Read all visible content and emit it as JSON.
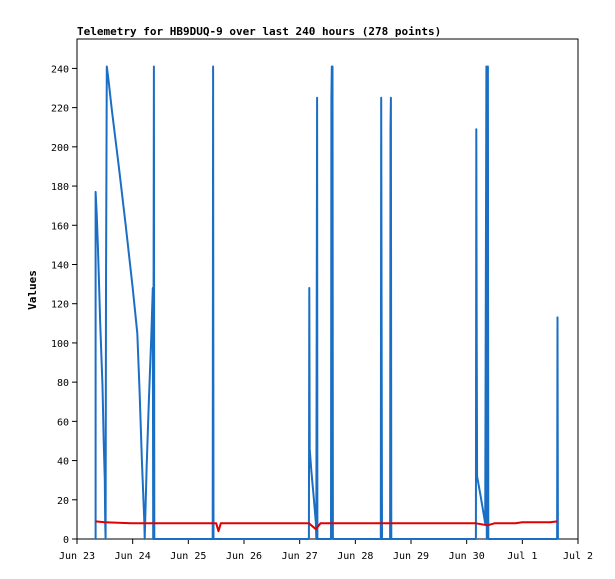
{
  "chart_data": {
    "type": "line",
    "title": "Telemetry for HB9DUQ-9 over last 240 hours (278 points)",
    "xlabel": "",
    "ylabel": "Values",
    "x_ticks": [
      "Jun 23",
      "Jun 24",
      "Jun 25",
      "Jun 26",
      "Jun 27",
      "Jun 28",
      "Jun 29",
      "Jun 30",
      "Jul 1",
      "Jul 2"
    ],
    "xlim": [
      "Jun 23",
      "Jul 2"
    ],
    "ylim": [
      0,
      255
    ],
    "y_ticks": [
      0,
      20,
      40,
      60,
      80,
      100,
      120,
      140,
      160,
      180,
      200,
      220,
      240
    ],
    "grid": false,
    "legend": "none",
    "colors": {
      "blue": "#1a6fc4",
      "red": "#e00000",
      "axis": "#000000"
    },
    "series": [
      {
        "color": "#1a6fc4",
        "points": [
          [
            "Jun 23 08:00",
            0
          ],
          [
            "Jun 23 08:00",
            177
          ],
          [
            "Jun 23 08:30",
            166
          ],
          [
            "Jun 23 09:00",
            149
          ],
          [
            "Jun 23 09:30",
            131
          ],
          [
            "Jun 23 10:00",
            110
          ],
          [
            "Jun 23 11:00",
            78
          ],
          [
            "Jun 23 11:30",
            50
          ],
          [
            "Jun 23 12:00",
            30
          ],
          [
            "Jun 23 12:10",
            8
          ],
          [
            "Jun 23 12:20",
            0
          ],
          [
            "Jun 23 12:30",
            128
          ],
          [
            "Jun 23 12:50",
            241
          ],
          [
            "Jun 23 13:30",
            235
          ],
          [
            "Jun 23 15:00",
            219
          ],
          [
            "Jun 23 18:00",
            190
          ],
          [
            "Jun 23 21:00",
            160
          ],
          [
            "Jun 24 00:00",
            128
          ],
          [
            "Jun 24 02:00",
            105
          ],
          [
            "Jun 24 03:00",
            75
          ],
          [
            "Jun 24 04:00",
            40
          ],
          [
            "Jun 24 05:00",
            9
          ],
          [
            "Jun 24 05:10",
            0
          ],
          [
            "Jun 24 06:00",
            36
          ],
          [
            "Jun 24 07:00",
            71
          ],
          [
            "Jun 24 08:00",
            102
          ],
          [
            "Jun 24 08:40",
            128
          ],
          [
            "Jun 24 08:50",
            0
          ],
          [
            "Jun 24 09:10",
            241
          ],
          [
            "Jun 24 09:20",
            0
          ],
          [
            "Jun 25 10:30",
            0
          ],
          [
            "Jun 25 10:40",
            241
          ],
          [
            "Jun 25 10:50",
            0
          ],
          [
            "Jun 27 04:00",
            0
          ],
          [
            "Jun 27 04:10",
            128
          ],
          [
            "Jun 27 04:20",
            46
          ],
          [
            "Jun 27 05:00",
            35
          ],
          [
            "Jun 27 06:00",
            22
          ],
          [
            "Jun 27 07:00",
            8
          ],
          [
            "Jun 27 07:10",
            0
          ],
          [
            "Jun 27 07:30",
            225
          ],
          [
            "Jun 27 07:40",
            0
          ],
          [
            "Jun 27 13:30",
            0
          ],
          [
            "Jun 27 13:40",
            225
          ],
          [
            "Jun 27 13:50",
            241
          ],
          [
            "Jun 27 14:00",
            200
          ],
          [
            "Jun 27 14:10",
            241
          ],
          [
            "Jun 27 14:20",
            0
          ],
          [
            "Jun 28 11:00",
            0
          ],
          [
            "Jun 28 11:10",
            225
          ],
          [
            "Jun 28 11:20",
            113
          ],
          [
            "Jun 28 11:30",
            0
          ],
          [
            "Jun 28 15:00",
            0
          ],
          [
            "Jun 28 15:10",
            209
          ],
          [
            "Jun 28 15:20",
            225
          ],
          [
            "Jun 28 15:30",
            0
          ],
          [
            "Jun 30 04:00",
            0
          ],
          [
            "Jun 30 04:10",
            209
          ],
          [
            "Jun 30 04:20",
            104
          ],
          [
            "Jun 30 04:30",
            32
          ],
          [
            "Jun 30 06:00",
            22
          ],
          [
            "Jun 30 07:00",
            15
          ],
          [
            "Jun 30 08:00",
            8
          ],
          [
            "Jun 30 08:30",
            241
          ],
          [
            "Jun 30 08:40",
            0
          ],
          [
            "Jun 30 09:10",
            241
          ],
          [
            "Jun 30 09:20",
            0
          ],
          [
            "Jul 1 15:00",
            0
          ],
          [
            "Jul 1 15:10",
            113
          ],
          [
            "Jul 1 15:20",
            0
          ]
        ]
      },
      {
        "color": "#e00000",
        "points": [
          [
            "Jun 23 08:00",
            9
          ],
          [
            "Jun 23 12:00",
            8.5
          ],
          [
            "Jun 24 00:00",
            8
          ],
          [
            "Jun 24 12:00",
            8
          ],
          [
            "Jun 25 12:00",
            8
          ],
          [
            "Jun 25 13:00",
            4
          ],
          [
            "Jun 25 14:00",
            8
          ],
          [
            "Jun 26 12:00",
            8
          ],
          [
            "Jun 27 04:00",
            8
          ],
          [
            "Jun 27 07:00",
            5
          ],
          [
            "Jun 27 09:00",
            8
          ],
          [
            "Jun 28 12:00",
            8
          ],
          [
            "Jun 29 12:00",
            8
          ],
          [
            "Jun 30 04:00",
            8
          ],
          [
            "Jun 30 09:00",
            7
          ],
          [
            "Jun 30 12:00",
            8
          ],
          [
            "Jun 30 21:00",
            8
          ],
          [
            "Jul 1 00:00",
            8.5
          ],
          [
            "Jul 1 12:00",
            8.5
          ],
          [
            "Jul 1 15:00",
            9
          ]
        ]
      }
    ]
  }
}
